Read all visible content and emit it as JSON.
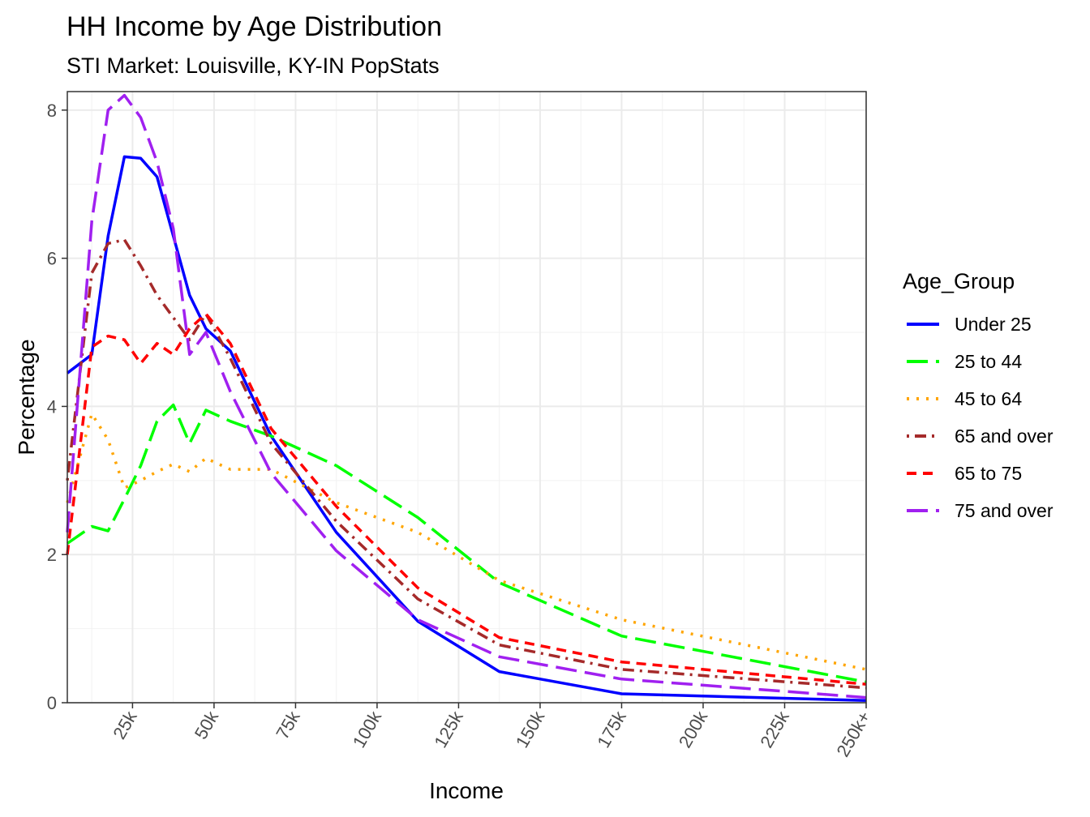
{
  "chart_data": {
    "type": "line",
    "title": "HH Income by Age Distribution",
    "subtitle": "STI Market: Louisville, KY-IN PopStats",
    "xlabel": "Income",
    "ylabel": "Percentage",
    "x_tick_labels": [
      "25k",
      "50k",
      "75k",
      "100k",
      "125k",
      "150k",
      "175k",
      "200k",
      "225k",
      "250k+"
    ],
    "x_tick_values": [
      25,
      50,
      75,
      100,
      125,
      150,
      175,
      200,
      225,
      250
    ],
    "y_tick_labels": [
      "0",
      "2",
      "4",
      "6",
      "8"
    ],
    "y_tick_values": [
      0,
      2,
      4,
      6,
      8
    ],
    "xlim": [
      5,
      250
    ],
    "ylim": [
      0,
      8.25
    ],
    "grid": true,
    "legend_title": "Age_Group",
    "legend_position": "right",
    "series": [
      {
        "name": "Under 25",
        "color": "#0000FF",
        "dash": "solid",
        "x": [
          5,
          12.5,
          17.5,
          22.5,
          27.5,
          32.5,
          37.5,
          42.5,
          47.5,
          55,
          67.5,
          87.5,
          112.5,
          137.5,
          175,
          250
        ],
        "y": [
          4.45,
          4.7,
          6.3,
          7.37,
          7.35,
          7.1,
          6.3,
          5.5,
          5.05,
          4.75,
          3.6,
          2.3,
          1.1,
          0.42,
          0.12,
          0.03
        ]
      },
      {
        "name": "25 to 44",
        "color": "#00FF00",
        "dash": "longdash",
        "x": [
          5,
          12.5,
          17.5,
          22.5,
          27.5,
          32.5,
          37.5,
          42.5,
          47.5,
          55,
          67.5,
          87.5,
          112.5,
          137.5,
          175,
          250
        ],
        "y": [
          2.15,
          2.38,
          2.32,
          2.75,
          3.2,
          3.8,
          4.02,
          3.5,
          3.95,
          3.8,
          3.6,
          3.2,
          2.5,
          1.62,
          0.9,
          0.28
        ]
      },
      {
        "name": "45 to 64",
        "color": "#FFA500",
        "dash": "dotted",
        "x": [
          5,
          12.5,
          17.5,
          22.5,
          27.5,
          32.5,
          37.5,
          42.5,
          47.5,
          55,
          67.5,
          87.5,
          112.5,
          137.5,
          175,
          250
        ],
        "y": [
          2.7,
          3.9,
          3.55,
          2.9,
          3.0,
          3.12,
          3.22,
          3.12,
          3.3,
          3.15,
          3.15,
          2.7,
          2.3,
          1.65,
          1.12,
          0.45
        ]
      },
      {
        "name": "65 and over",
        "color": "#A52A2A",
        "dash": "dotdash",
        "x": [
          5,
          12.5,
          17.5,
          22.5,
          27.5,
          32.5,
          37.5,
          42.5,
          47.5,
          55,
          67.5,
          87.5,
          112.5,
          137.5,
          175,
          250
        ],
        "y": [
          3.0,
          5.8,
          6.2,
          6.25,
          5.9,
          5.5,
          5.2,
          4.9,
          5.25,
          4.65,
          3.5,
          2.45,
          1.4,
          0.78,
          0.45,
          0.2
        ]
      },
      {
        "name": "65 to 75",
        "color": "#FF0000",
        "dash": "dashed",
        "x": [
          5,
          12.5,
          17.5,
          22.5,
          27.5,
          32.5,
          37.5,
          42.5,
          47.5,
          55,
          67.5,
          87.5,
          112.5,
          137.5,
          175,
          250
        ],
        "y": [
          2.0,
          4.8,
          4.95,
          4.9,
          4.58,
          4.85,
          4.7,
          5.05,
          5.25,
          4.85,
          3.7,
          2.65,
          1.55,
          0.88,
          0.55,
          0.25
        ]
      },
      {
        "name": "75 and over",
        "color": "#A020F0",
        "dash": "longdash",
        "x": [
          5,
          12.5,
          17.5,
          22.5,
          27.5,
          32.5,
          37.5,
          42.5,
          47.5,
          55,
          67.5,
          87.5,
          112.5,
          137.5,
          175,
          250
        ],
        "y": [
          2.3,
          6.5,
          8.0,
          8.2,
          7.9,
          7.3,
          6.4,
          4.7,
          5.0,
          4.2,
          3.1,
          2.05,
          1.12,
          0.62,
          0.32,
          0.07
        ]
      }
    ]
  }
}
